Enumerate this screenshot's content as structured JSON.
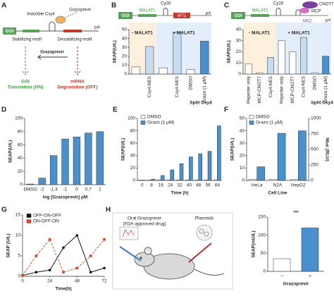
{
  "panels": [
    "A",
    "B",
    "C",
    "D",
    "E",
    "F",
    "G",
    "H"
  ],
  "diagram_a": {
    "goi": "GOI",
    "csy4": "Inducible Csy4",
    "drug": "Grazoprevir",
    "pa": "pA",
    "stab": "Stabilizing motif",
    "destab": "Destabilizing motif",
    "drug2": "Grazoprevir",
    "on1": "GOI",
    "on2": "Translation (ON)",
    "off1": "mRNA",
    "off2": "Degradation (OFF)"
  },
  "construct_b": {
    "goi": "GOI",
    "malat": "MALAT1",
    "cy": "Cy28",
    "wt": "WT1",
    "pa": "pA"
  },
  "construct_c": {
    "goi": "GOI",
    "malat": "MALAT1",
    "cy": "Cy28",
    "ms2": "MS2",
    "cnot": "CNOT7",
    "mcp": "MCP",
    "pa": "pA"
  },
  "diagram_h": {
    "drug": "Oral Grazoprevir",
    "fda": "(FDA-approved drug)",
    "plasmids": "Plasmids"
  },
  "chart_data": [
    {
      "type": "bar",
      "ylabel": "SEAP(U/L)",
      "ylim": [
        0,
        50
      ],
      "yticks": [
        0,
        10,
        20,
        30,
        40,
        50
      ],
      "categories": [
        null,
        "Csy4-NES",
        null,
        "Csy4-NES",
        "DMSO",
        "Grazo (1 μM)"
      ],
      "values": [
        8,
        31,
        7,
        47,
        5,
        37
      ],
      "colors": [
        "#ffffff",
        "#c6dcf0",
        "#ffffff",
        "#c6dcf0",
        "#ffffff",
        "#4a90cf"
      ],
      "annotations": [
        "- MALAT1",
        "+ MALAT1",
        "Split Csy4"
      ]
    },
    {
      "type": "bar",
      "ylabel": "SEAP(U/L)",
      "ylim": [
        0,
        40
      ],
      "yticks": [
        0,
        10,
        20,
        30,
        40
      ],
      "categories": [
        "Reporter only",
        "MCP-CNOT7",
        "Csy4-NES",
        "Reporter only",
        "MCP-CNOT7",
        "Csy4-NES",
        "DMSO",
        "Grazo (1 μM)"
      ],
      "values": [
        9,
        1,
        15,
        30,
        20,
        33,
        1,
        16
      ],
      "colors": [
        "#ffffff",
        "#ffffff",
        "#c6dcf0",
        "#ffffff",
        "#ffffff",
        "#c6dcf0",
        "#ffffff",
        "#4a90cf"
      ],
      "annotations": [
        "- MALAT1",
        "+ MALAT1",
        "Split Csy4"
      ]
    },
    {
      "type": "bar",
      "ylabel": "SEAP(U/L)",
      "xlabel": "log [Grazoprevir] μM",
      "ylim": [
        0,
        100
      ],
      "yticks": [
        0,
        20,
        40,
        60,
        80,
        100
      ],
      "categories": [
        "DMSO",
        "-2",
        "-1.3",
        "-1",
        "0",
        "0.7",
        "1"
      ],
      "values": [
        1,
        10,
        44,
        69,
        72,
        78,
        80
      ],
      "color": "#4a90cf"
    },
    {
      "type": "bar",
      "ylabel": "SEAP(U/L)",
      "xlabel": "Time (h)",
      "ylim": [
        0,
        100
      ],
      "yticks": [
        0,
        20,
        40,
        60,
        80,
        100
      ],
      "categories": [
        "0",
        "8",
        "16",
        "24",
        "32",
        "40",
        "48",
        "56",
        "64"
      ],
      "series": [
        {
          "name": "DMSO",
          "color": "#ffffff",
          "values": [
            0.5,
            1,
            1,
            1,
            1,
            1,
            1,
            1,
            1
          ]
        },
        {
          "name": "Grazo (1 μM)",
          "color": "#4a90cf",
          "values": [
            0.5,
            2,
            8,
            17,
            27,
            38,
            43,
            47,
            88
          ]
        }
      ]
    },
    {
      "type": "bar",
      "ylabel": "SEAP(U/L)",
      "y2label": "Nluc (RLU)",
      "xlabel": "Cell Line",
      "ylim": [
        0,
        50
      ],
      "yticks": [
        0,
        10,
        20,
        30,
        40,
        50
      ],
      "y2lim": [
        0,
        1000
      ],
      "y2ticks": [
        0,
        250,
        500,
        750,
        1000
      ],
      "categories": [
        "HeLa",
        "N2A",
        "HepG2"
      ],
      "series": [
        {
          "name": "DMSO",
          "color": "#ffffff",
          "values": [
            1,
            1,
            1
          ]
        },
        {
          "name": "Grazo (1 μM)",
          "color": "#4a90cf",
          "values": [
            11,
            38,
            40
          ]
        }
      ]
    },
    {
      "type": "line",
      "ylabel": "SEAP (U/L)",
      "xlabel": "Time(h)",
      "xlim": [
        0,
        72
      ],
      "xticks": [
        0,
        24,
        48,
        72
      ],
      "ylim": [
        0,
        15
      ],
      "yticks": [
        0,
        5,
        10,
        15
      ],
      "x": [
        0,
        12,
        24,
        36,
        48,
        60,
        72
      ],
      "series": [
        {
          "name": "OFF-ON-OFF",
          "color": "#111111",
          "values": [
            0.2,
            1,
            1.5,
            7,
            10,
            1,
            2
          ]
        },
        {
          "name": "ON-OFF-ON",
          "color": "#d9472b",
          "values": [
            0.2,
            5,
            9,
            1,
            2,
            5,
            9
          ]
        }
      ]
    },
    {
      "type": "bar",
      "ylabel": "SEAP(mU/L)",
      "xlabel": "Grazoprevir",
      "ylim": [
        0,
        150
      ],
      "yticks": [
        0,
        50,
        100,
        150
      ],
      "categories": [
        "–",
        "+"
      ],
      "values": [
        35,
        120
      ],
      "colors": [
        "#ffffff",
        "#4a90cf"
      ],
      "annotations": [
        "***"
      ]
    }
  ]
}
